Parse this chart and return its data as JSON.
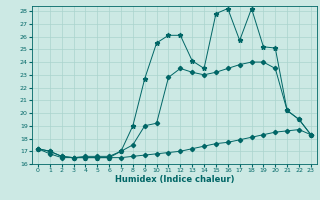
{
  "xlabel": "Humidex (Indice chaleur)",
  "bg_color": "#cce9e4",
  "line_color": "#006666",
  "grid_color": "#aad4ce",
  "xlim": [
    -0.5,
    23.5
  ],
  "ylim": [
    16,
    28.4
  ],
  "yticks": [
    16,
    17,
    18,
    19,
    20,
    21,
    22,
    23,
    24,
    25,
    26,
    27,
    28
  ],
  "xticks": [
    0,
    1,
    2,
    3,
    4,
    5,
    6,
    7,
    8,
    9,
    10,
    11,
    12,
    13,
    14,
    15,
    16,
    17,
    18,
    19,
    20,
    21,
    22,
    23
  ],
  "line_bottom_x": [
    0,
    1,
    2,
    3,
    4,
    5,
    6,
    7,
    8,
    9,
    10,
    11,
    12,
    13,
    14,
    15,
    16,
    17,
    18,
    19,
    20,
    21,
    22,
    23
  ],
  "line_bottom_y": [
    17.2,
    17.0,
    16.6,
    16.5,
    16.5,
    16.5,
    16.5,
    16.5,
    16.6,
    16.7,
    16.8,
    16.9,
    17.0,
    17.2,
    17.4,
    17.6,
    17.7,
    17.9,
    18.1,
    18.3,
    18.5,
    18.6,
    18.7,
    18.3
  ],
  "line_mid_x": [
    0,
    1,
    2,
    3,
    4,
    5,
    6,
    7,
    8,
    9,
    10,
    11,
    12,
    13,
    14,
    15,
    16,
    17,
    18,
    19,
    20,
    21,
    22,
    23
  ],
  "line_mid_y": [
    17.2,
    16.8,
    16.5,
    16.5,
    16.6,
    16.6,
    16.6,
    17.0,
    17.5,
    19.0,
    19.2,
    22.8,
    23.5,
    23.2,
    23.0,
    23.2,
    23.5,
    23.8,
    24.0,
    24.0,
    23.5,
    20.2,
    19.5,
    18.3
  ],
  "line_top_x": [
    0,
    1,
    2,
    3,
    4,
    5,
    6,
    7,
    8,
    9,
    10,
    11,
    12,
    13,
    14,
    15,
    16,
    17,
    18,
    19,
    20,
    21,
    22,
    23
  ],
  "line_top_y": [
    17.2,
    17.0,
    16.6,
    16.5,
    16.5,
    16.5,
    16.5,
    17.0,
    19.0,
    22.7,
    25.5,
    26.1,
    26.1,
    24.1,
    23.5,
    27.8,
    28.2,
    25.7,
    28.2,
    25.2,
    25.1,
    20.2,
    19.5,
    18.3
  ]
}
